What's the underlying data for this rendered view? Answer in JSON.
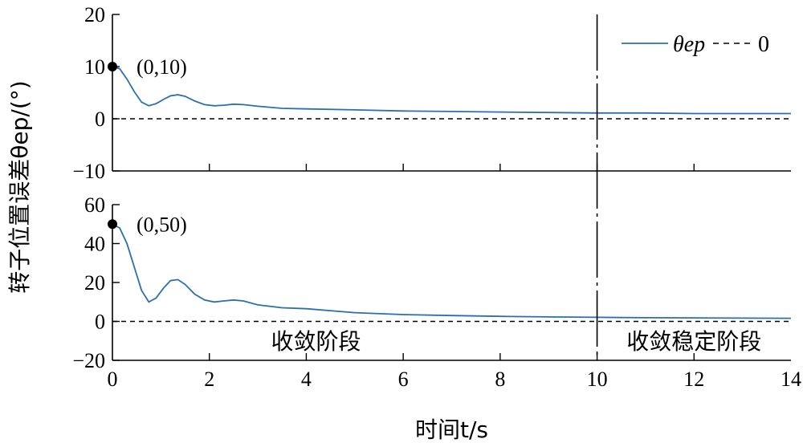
{
  "chart_data": {
    "type": "line",
    "x_label": "时间t/s",
    "y_label": "转子位置误差θep/(°)",
    "x_range": [
      0,
      14
    ],
    "x_ticks": [
      0,
      2,
      4,
      6,
      8,
      10,
      12,
      14
    ],
    "grid": false,
    "legend": {
      "placement": "top-right",
      "entries": [
        {
          "name": "θep",
          "style": "solid",
          "color": "#2b6fb0"
        },
        {
          "name": "0",
          "style": "dashed",
          "color": "#000000"
        }
      ]
    },
    "divider_x": 10,
    "stage_labels": [
      "收敛阶段",
      "收敛稳定阶段"
    ],
    "panels": [
      {
        "y_range": [
          -10,
          20
        ],
        "y_ticks": [
          20,
          10,
          0,
          -10
        ],
        "y_tick_labels": [
          "20",
          "10",
          "0",
          "−10"
        ],
        "start_point": {
          "x": 0,
          "y": 10,
          "label": "(0,10)"
        },
        "series": [
          {
            "name": "θep",
            "x": [
              0,
              0.15,
              0.3,
              0.45,
              0.6,
              0.75,
              0.9,
              1.05,
              1.2,
              1.35,
              1.5,
              1.7,
              1.9,
              2.1,
              2.3,
              2.5,
              2.7,
              3.0,
              3.5,
              4.0,
              5.0,
              6.0,
              7.0,
              8.0,
              9.0,
              10.0,
              11.0,
              12.0,
              13.0,
              14.0
            ],
            "y": [
              10,
              9.6,
              7.6,
              5.2,
              3.2,
              2.5,
              2.9,
              3.7,
              4.4,
              4.6,
              4.3,
              3.4,
              2.7,
              2.5,
              2.6,
              2.8,
              2.7,
              2.4,
              2.0,
              1.9,
              1.7,
              1.5,
              1.4,
              1.3,
              1.2,
              1.1,
              1.1,
              1.0,
              1.0,
              1.0
            ]
          },
          {
            "name": "0",
            "x": [
              0,
              14
            ],
            "y": [
              0,
              0
            ]
          }
        ]
      },
      {
        "y_range": [
          -20,
          60
        ],
        "y_ticks": [
          60,
          40,
          20,
          0,
          -20
        ],
        "y_tick_labels": [
          "60",
          "40",
          "20",
          "0",
          "−20"
        ],
        "start_point": {
          "x": 0,
          "y": 50,
          "label": "(0,50)"
        },
        "series": [
          {
            "name": "θep",
            "x": [
              0,
              0.15,
              0.3,
              0.45,
              0.6,
              0.75,
              0.9,
              1.05,
              1.2,
              1.35,
              1.5,
              1.7,
              1.9,
              2.1,
              2.3,
              2.5,
              2.7,
              3.0,
              3.5,
              4.0,
              5.0,
              6.0,
              7.0,
              8.0,
              9.0,
              10.0,
              11.0,
              12.0,
              13.0,
              14.0
            ],
            "y": [
              50,
              48,
              40,
              28,
              16,
              10,
              12,
              17,
              21,
              21.5,
              19,
              14,
              11,
              10,
              10.5,
              11,
              10.5,
              8.5,
              7,
              6.5,
              4.5,
              3.5,
              3,
              2.6,
              2.3,
              2.1,
              1.9,
              1.8,
              1.7,
              1.6
            ]
          },
          {
            "name": "0",
            "x": [
              0,
              14
            ],
            "y": [
              0,
              0
            ]
          }
        ]
      }
    ]
  },
  "colors": {
    "series": "#2b6fb0",
    "axis": "#000000"
  }
}
